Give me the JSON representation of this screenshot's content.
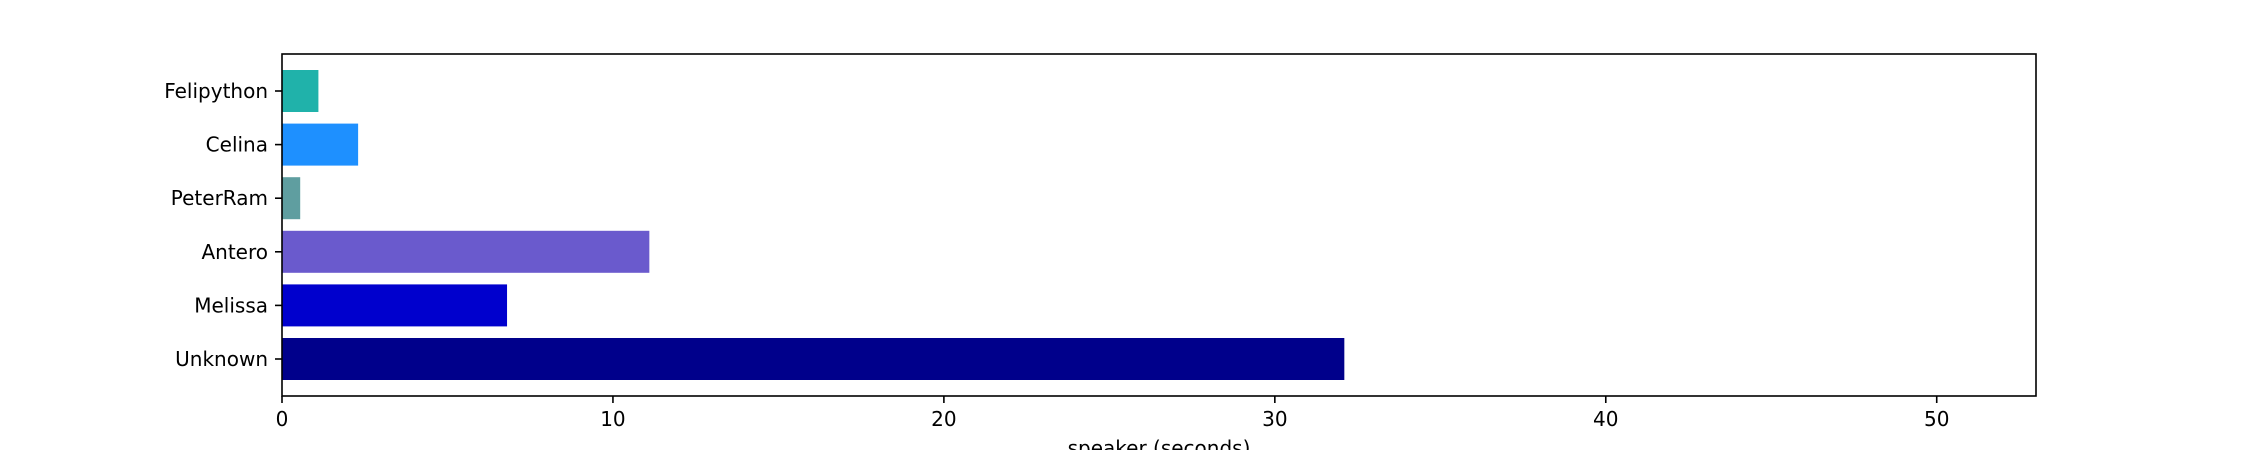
{
  "chart_data": {
    "type": "bar",
    "orientation": "horizontal",
    "categories": [
      "Felipython",
      "Celina",
      "PeterRam",
      "Antero",
      "Melissa",
      "Unknown"
    ],
    "values": [
      1.1,
      2.3,
      0.55,
      11.1,
      6.8,
      32.1
    ],
    "colors": [
      "#20b2aa",
      "#1e90ff",
      "#5f9ea0",
      "#6a5acd",
      "#0000cd",
      "#00008b"
    ],
    "title": "",
    "xlabel": "speaker (seconds)",
    "ylabel": "",
    "xlim": [
      0,
      53
    ],
    "xticks": [
      0,
      10,
      20,
      30,
      40,
      50
    ],
    "xtick_labels": [
      "0",
      "10",
      "20",
      "30",
      "40",
      "50"
    ],
    "grid": false,
    "legend": "none"
  }
}
